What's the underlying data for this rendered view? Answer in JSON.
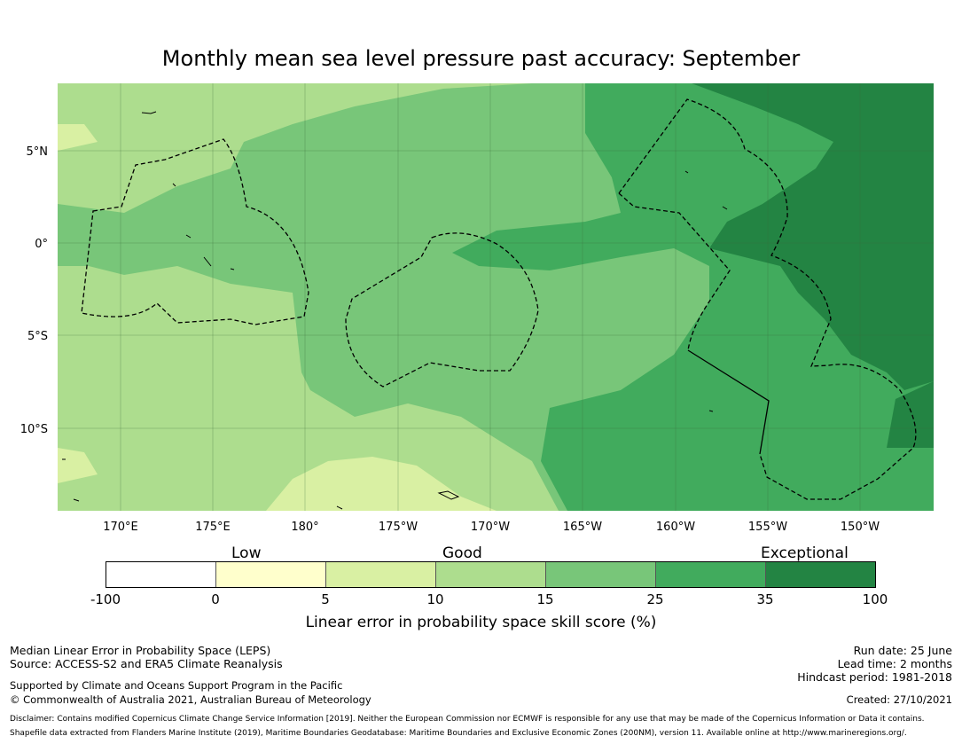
{
  "title": "Monthly mean sea level pressure past accuracy: September",
  "map": {
    "lat_ticks": [
      "5°N",
      "0°",
      "5°S",
      "10°S"
    ],
    "lon_ticks": [
      "170°E",
      "175°E",
      "180°",
      "175°W",
      "170°W",
      "165°W",
      "160°W",
      "155°W",
      "150°W"
    ]
  },
  "colorbar": {
    "categories": [
      "Low",
      "Good",
      "Exceptional"
    ],
    "ticks": [
      "-100",
      "0",
      "5",
      "10",
      "15",
      "25",
      "35",
      "100"
    ],
    "colors": [
      "#ffffff",
      "#ffffcc",
      "#d9f0a3",
      "#addd8e",
      "#78c679",
      "#41ab5d",
      "#238443"
    ],
    "label": "Linear error in probability space skill score (%)"
  },
  "footer": {
    "left_line1": "Median Linear Error in Probability Space (LEPS)",
    "left_line2": "Source: ACCESS-S2 and ERA5 Climate Reanalysis",
    "left_line3": "Supported by Climate and Oceans Support Program in the Pacific",
    "left_line4": "© Commonwealth of Australia 2021, Australian Bureau of Meteorology",
    "right_line1": "Run date: 25 June",
    "right_line2": "Lead time: 2 months",
    "right_line3": "Hindcast period: 1981-2018",
    "right_line4": "Created: 27/10/2021",
    "disclaimer": "Disclaimer: Contains modified Copernicus Climate Change Service Information [2019]. Neither the European Commission nor ECMWF is responsible for any use that may be made of the Copernicus Information or Data it contains.",
    "shapefile": "Shapefile data extracted from Flanders Marine Institute (2019), Maritime Boundaries Geodatabase: Maritime Boundaries and Exclusive Economic Zones (200NM), version 11. Available online at http://www.marineregions.org/."
  }
}
